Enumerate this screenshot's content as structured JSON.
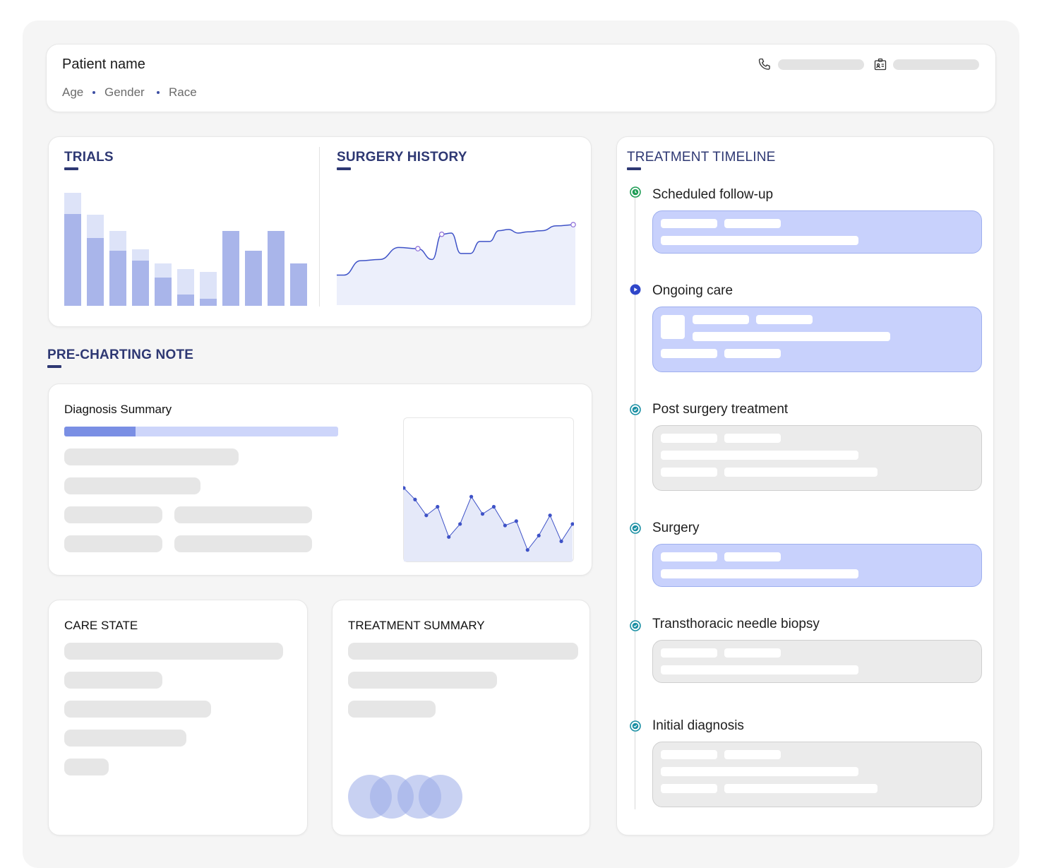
{
  "patient": {
    "name": "Patient name",
    "age_label": "Age",
    "gender_label": "Gender",
    "race_label": "Race",
    "phone_icon": "phone-icon",
    "id_icon": "id-card-icon"
  },
  "trials": {
    "heading": "TRIALS",
    "chart_data": {
      "type": "bar",
      "stacked": true,
      "series": [
        {
          "values": [
            130,
            96,
            78,
            64,
            40,
            16,
            10,
            106,
            78,
            106,
            60
          ],
          "color": "#a9b5ea"
        },
        {
          "values": [
            30,
            33,
            28,
            16,
            20,
            36,
            38,
            0,
            0,
            0,
            0
          ],
          "color": "#dde3f8"
        }
      ]
    }
  },
  "surgery_history": {
    "heading": "SURGERY HISTORY",
    "chart_data": {
      "type": "area",
      "x": [
        0,
        3,
        10,
        18,
        26,
        34,
        40,
        44,
        48,
        52,
        56,
        60,
        64,
        68,
        72,
        76,
        80,
        86,
        92,
        100
      ],
      "y": [
        25,
        25,
        37,
        38,
        48,
        47,
        38,
        59,
        60,
        43,
        43,
        53,
        53,
        62,
        63,
        60,
        61,
        62,
        66,
        67
      ],
      "markers_x": [
        34,
        44,
        100
      ],
      "ylim": [
        0,
        100
      ],
      "color": "#3e52c7",
      "fill": "#eceffb"
    }
  },
  "pre_charting": {
    "heading": "PRE-CHARTING NOTE",
    "diagnosis_title": "Diagnosis Summary",
    "progress": 0.26,
    "chart_data": {
      "type": "line",
      "x": [
        0,
        1,
        2,
        3,
        4,
        5,
        6,
        7,
        8,
        9,
        10,
        11,
        12,
        13,
        14,
        15
      ],
      "y": [
        51,
        43,
        32,
        38,
        17,
        26,
        45,
        33,
        38,
        25,
        28,
        8,
        18,
        32,
        14,
        26
      ],
      "ylim": [
        0,
        100
      ],
      "color": "#3e52c7",
      "fill": "#e5e9f9"
    }
  },
  "care_state": {
    "heading": "CARE STATE"
  },
  "treatment_summary": {
    "heading": "TREATMENT SUMMARY"
  },
  "timeline": {
    "heading": "TREATMENT TIMELINE",
    "events": [
      {
        "label": "Scheduled follow-up",
        "icon": "clock-icon",
        "status": "upcoming"
      },
      {
        "label": "Ongoing care",
        "icon": "play-icon",
        "status": "current"
      },
      {
        "label": "Post surgery treatment",
        "icon": "check-icon",
        "status": "done"
      },
      {
        "label": "Surgery",
        "icon": "check-icon",
        "status": "done"
      },
      {
        "label": "Transthoracic needle biopsy",
        "icon": "check-icon",
        "status": "done"
      },
      {
        "label": "Initial diagnosis",
        "icon": "check-icon",
        "status": "done"
      }
    ]
  },
  "colors": {
    "accent": "#2e3873",
    "chart_blue": "#3e52c7",
    "timeline_blue_box": "#c8d1fc",
    "timeline_gray_box": "#ebebeb",
    "green_icon": "#1f9d55",
    "teal_icon": "#1a8fa3"
  }
}
